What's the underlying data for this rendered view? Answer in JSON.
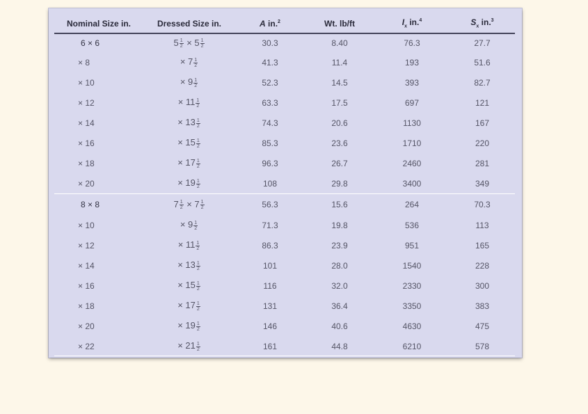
{
  "headers": {
    "nominal": "Nominal Size in.",
    "dressed": "Dressed Size in.",
    "area_sym": "A",
    "area_unit": " in.",
    "area_exp": "2",
    "weight": "Wt. lb/ft",
    "ix_sym": "I",
    "ix_sub": "x",
    "ix_unit": " in.",
    "ix_exp": "4",
    "sx_sym": "S",
    "sx_sub": "x",
    "sx_unit": " in.",
    "sx_exp": "3"
  },
  "groups": [
    {
      "rows": [
        {
          "nominal": "6 × 6",
          "d_pre": "5",
          "d_n": "1",
          "d_d": "2",
          "d_mid": " × 5",
          "d_n2": "1",
          "d_d2": "2",
          "area": "30.3",
          "weight": "8.40",
          "ix": "76.3",
          "sx": "27.7"
        },
        {
          "nominal": "× 8",
          "d_pre": "× 7",
          "d_n": "1",
          "d_d": "2",
          "area": "41.3",
          "weight": "11.4",
          "ix": "193",
          "sx": "51.6"
        },
        {
          "nominal": "× 10",
          "d_pre": "× 9",
          "d_n": "1",
          "d_d": "2",
          "area": "52.3",
          "weight": "14.5",
          "ix": "393",
          "sx": "82.7"
        },
        {
          "nominal": "× 12",
          "d_pre": "× 11",
          "d_n": "1",
          "d_d": "2",
          "area": "63.3",
          "weight": "17.5",
          "ix": "697",
          "sx": "121"
        },
        {
          "nominal": "× 14",
          "d_pre": "× 13",
          "d_n": "1",
          "d_d": "2",
          "area": "74.3",
          "weight": "20.6",
          "ix": "1130",
          "sx": "167"
        },
        {
          "nominal": "× 16",
          "d_pre": "× 15",
          "d_n": "1",
          "d_d": "2",
          "area": "85.3",
          "weight": "23.6",
          "ix": "1710",
          "sx": "220"
        },
        {
          "nominal": "× 18",
          "d_pre": "× 17",
          "d_n": "1",
          "d_d": "2",
          "area": "96.3",
          "weight": "26.7",
          "ix": "2460",
          "sx": "281"
        },
        {
          "nominal": "× 20",
          "d_pre": "× 19",
          "d_n": "1",
          "d_d": "2",
          "area": "108",
          "weight": "29.8",
          "ix": "3400",
          "sx": "349"
        }
      ]
    },
    {
      "rows": [
        {
          "nominal": "8 × 8",
          "d_pre": "7",
          "d_n": "1",
          "d_d": "2",
          "d_mid": " × 7",
          "d_n2": "1",
          "d_d2": "2",
          "area": "56.3",
          "weight": "15.6",
          "ix": "264",
          "sx": "70.3"
        },
        {
          "nominal": "× 10",
          "d_pre": "× 9",
          "d_n": "1",
          "d_d": "2",
          "area": "71.3",
          "weight": "19.8",
          "ix": "536",
          "sx": "113"
        },
        {
          "nominal": "× 12",
          "d_pre": "× 11",
          "d_n": "1",
          "d_d": "2",
          "area": "86.3",
          "weight": "23.9",
          "ix": "951",
          "sx": "165"
        },
        {
          "nominal": "× 14",
          "d_pre": "× 13",
          "d_n": "1",
          "d_d": "2",
          "area": "101",
          "weight": "28.0",
          "ix": "1540",
          "sx": "228"
        },
        {
          "nominal": "× 16",
          "d_pre": "× 15",
          "d_n": "1",
          "d_d": "2",
          "area": "116",
          "weight": "32.0",
          "ix": "2330",
          "sx": "300"
        },
        {
          "nominal": "× 18",
          "d_pre": "× 17",
          "d_n": "1",
          "d_d": "2",
          "area": "131",
          "weight": "36.4",
          "ix": "3350",
          "sx": "383"
        },
        {
          "nominal": "× 20",
          "d_pre": "× 19",
          "d_n": "1",
          "d_d": "2",
          "area": "146",
          "weight": "40.6",
          "ix": "4630",
          "sx": "475"
        },
        {
          "nominal": "× 22",
          "d_pre": "× 21",
          "d_n": "1",
          "d_d": "2",
          "area": "161",
          "weight": "44.8",
          "ix": "6210",
          "sx": "578"
        }
      ]
    }
  ],
  "colors": {
    "background": "#fdf7e9",
    "table_fill": "#d9d9ee",
    "header_rule": "#44445a"
  }
}
